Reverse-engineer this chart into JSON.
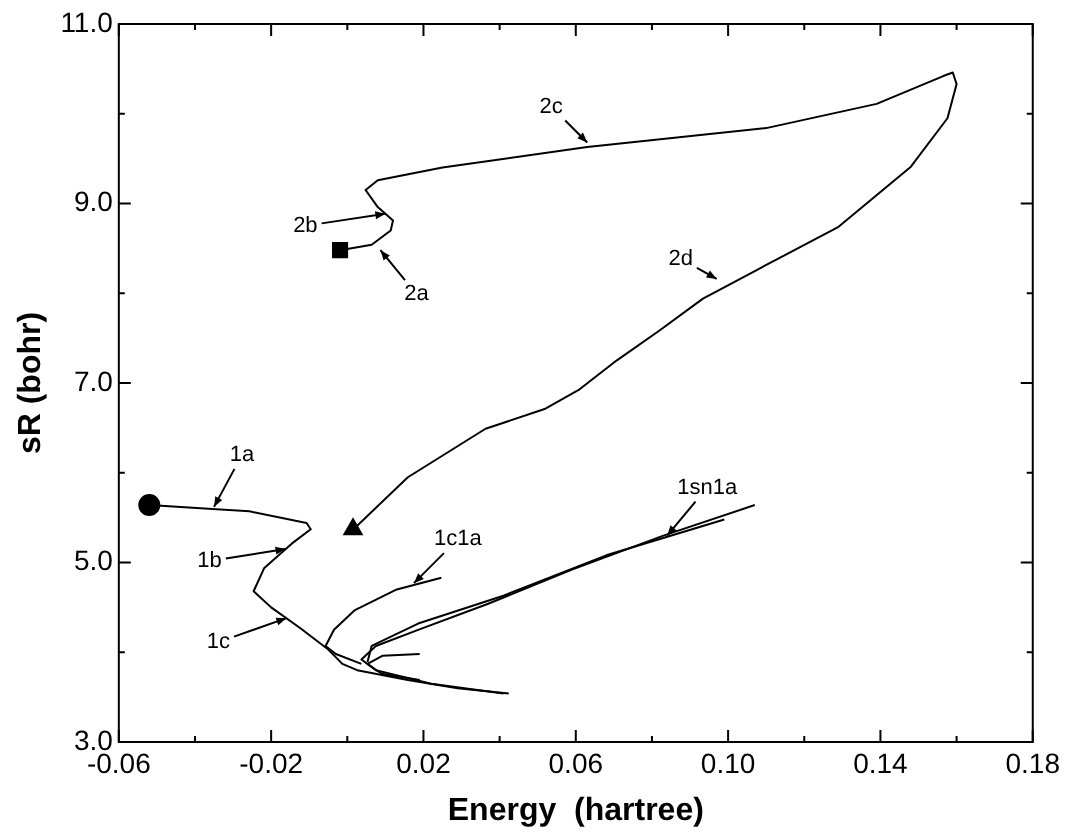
{
  "chart_data": {
    "type": "line",
    "xlabel": "Energy  (hartree)",
    "ylabel": "sR (bohr)",
    "xlim": [
      -0.06,
      0.18
    ],
    "ylim": [
      3,
      11
    ],
    "xticks": [
      {
        "value": -0.06,
        "label": "-0.06"
      },
      {
        "value": -0.04,
        "label": null
      },
      {
        "value": -0.02,
        "label": "-0.02"
      },
      {
        "value": 0,
        "label": null
      },
      {
        "value": 0.02,
        "label": "0.02"
      },
      {
        "value": 0.04,
        "label": null
      },
      {
        "value": 0.06,
        "label": "0.06"
      },
      {
        "value": 0.08,
        "label": null
      },
      {
        "value": 0.1,
        "label": "0.10"
      },
      {
        "value": 0.12,
        "label": null
      },
      {
        "value": 0.14,
        "label": "0.14"
      },
      {
        "value": 0.16,
        "label": null
      },
      {
        "value": 0.18,
        "label": "0.18"
      }
    ],
    "yticks": [
      {
        "value": 3,
        "label": "3.0"
      },
      {
        "value": 4,
        "label": null
      },
      {
        "value": 5,
        "label": "5.0"
      },
      {
        "value": 6,
        "label": null
      },
      {
        "value": 7,
        "label": "7.0"
      },
      {
        "value": 8,
        "label": null
      },
      {
        "value": 9,
        "label": "9.0"
      },
      {
        "value": 10,
        "label": null
      },
      {
        "value": 11,
        "label": "11.0"
      }
    ],
    "grid": false,
    "legend": false,
    "line_style": "solid",
    "marker": "none",
    "series": [
      {
        "type": "line",
        "color": "#000000",
        "x": [
          -0.052,
          -0.0257,
          -0.0107,
          -0.0096,
          -0.0146,
          -0.0218,
          -0.0246,
          -0.02,
          -0.0124,
          -0.005,
          -0.0013,
          0.0026,
          0.0159,
          0.029,
          0.0424
        ],
        "values": [
          5.64,
          5.57,
          5.44,
          5.37,
          5.21,
          4.94,
          4.68,
          4.5,
          4.27,
          4.03,
          3.87,
          3.8,
          3.69,
          3.6,
          3.54
        ]
      },
      {
        "type": "line",
        "color": "#000000",
        "x": [
          -0.0019,
          0.0064,
          0.0114,
          0.012,
          0.008,
          0.0048,
          0.008,
          0.025,
          0.063,
          0.11,
          0.139,
          0.1565,
          0.159,
          0.16,
          0.1576,
          0.148,
          0.129,
          0.108,
          0.0934,
          0.0818,
          0.0707,
          0.061,
          0.0518,
          0.0363,
          0.0159,
          0.0026
        ],
        "values": [
          8.48,
          8.54,
          8.7,
          8.81,
          8.96,
          9.15,
          9.26,
          9.4,
          9.63,
          9.84,
          10.11,
          10.42,
          10.46,
          10.33,
          9.95,
          9.41,
          8.74,
          8.27,
          7.94,
          7.58,
          7.25,
          6.93,
          6.71,
          6.49,
          5.95,
          5.41
        ]
      },
      {
        "type": "line",
        "color": "#000000",
        "x": [
          0.0247,
          0.013,
          0.002,
          -0.0035,
          -0.0057,
          -0.003,
          0.0037
        ],
        "values": [
          4.83,
          4.7,
          4.47,
          4.25,
          4.07,
          3.98,
          3.87
        ]
      },
      {
        "type": "line",
        "color": "#000000",
        "x": [
          0.107,
          0.083,
          0.059,
          0.037,
          0.0186,
          0.0075,
          0.0037,
          0.0075,
          0.022,
          0.041
        ],
        "values": [
          5.64,
          5.3,
          4.92,
          4.54,
          4.25,
          4.07,
          3.92,
          3.8,
          3.65,
          3.54
        ]
      },
      {
        "type": "line",
        "color": "#000000",
        "x": [
          0.099,
          0.068,
          0.041,
          0.0186,
          0.0064,
          0.0053
        ],
        "values": [
          5.48,
          5.08,
          4.63,
          4.32,
          4.07,
          3.89
        ]
      },
      {
        "type": "line",
        "color": "#000000",
        "x": [
          0.019,
          0.0092,
          0.0053,
          0.009,
          0.019
        ],
        "values": [
          3.98,
          3.96,
          3.87,
          3.76,
          3.69
        ]
      },
      {
        "type": "scatter",
        "color": "#000000",
        "marker": "circle",
        "x": [
          -0.052
        ],
        "values": [
          5.64
        ]
      },
      {
        "type": "scatter",
        "color": "#000000",
        "marker": "square",
        "x": [
          -0.0019
        ],
        "values": [
          8.48
        ]
      },
      {
        "type": "scatter",
        "color": "#000000",
        "marker": "triangle",
        "x": [
          0.0015
        ],
        "values": [
          5.37
        ]
      }
    ],
    "annotations": [
      {
        "text": "1a",
        "x": -0.035,
        "y": 5.62
      },
      {
        "text": "1b",
        "x": -0.0162,
        "y": 5.15
      },
      {
        "text": "1c",
        "x": -0.016,
        "y": 4.38
      },
      {
        "text": "1c1a",
        "x": 0.0175,
        "y": 4.77
      },
      {
        "text": "1sn1a",
        "x": 0.084,
        "y": 5.3
      },
      {
        "text": "2a",
        "x": 0.0087,
        "y": 8.48
      },
      {
        "text": "2b",
        "x": 0.01,
        "y": 8.885
      },
      {
        "text": "2c",
        "x": 0.063,
        "y": 9.68
      },
      {
        "text": "2d",
        "x": 0.097,
        "y": 8.16
      }
    ]
  }
}
